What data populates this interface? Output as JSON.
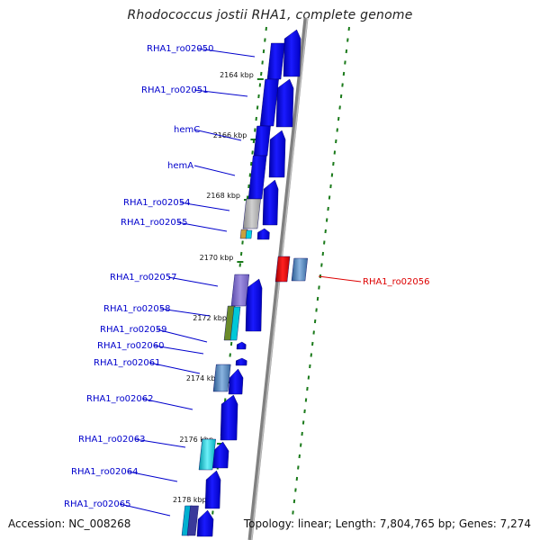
{
  "title": "Rhodococcus jostii RHA1, complete genome",
  "accession": "Accession: NC_008268",
  "topology": "Topology: linear; Length: 7,804,765 bp; Genes: 7,274",
  "gene_labels": [
    {
      "text": "RHA1_ro02050",
      "color": "#0000cc"
    },
    {
      "text": "RHA1_ro02051",
      "color": "#0000cc"
    },
    {
      "text": "hemC",
      "color": "#0000cc"
    },
    {
      "text": "hemA",
      "color": "#0000cc"
    },
    {
      "text": "RHA1_ro02054",
      "color": "#0000cc"
    },
    {
      "text": "RHA1_ro02055",
      "color": "#0000cc"
    },
    {
      "text": "RHA1_ro02057",
      "color": "#0000cc"
    },
    {
      "text": "RHA1_ro02058",
      "color": "#0000cc"
    },
    {
      "text": "RHA1_ro02059",
      "color": "#0000cc"
    },
    {
      "text": "RHA1_ro02060",
      "color": "#0000cc"
    },
    {
      "text": "RHA1_ro02061",
      "color": "#0000cc"
    },
    {
      "text": "RHA1_ro02062",
      "color": "#0000cc"
    },
    {
      "text": "RHA1_ro02063",
      "color": "#0000cc"
    },
    {
      "text": "RHA1_ro02064",
      "color": "#0000cc"
    },
    {
      "text": "RHA1_ro02065",
      "color": "#0000cc"
    },
    {
      "text": "RHA1_ro02056",
      "color": "#dd0000"
    }
  ],
  "kbp_ticks": [
    "2164 kbp",
    "2166 kbp",
    "2168 kbp",
    "2170 kbp",
    "2172 kbp",
    "2174 kbp",
    "2176 kbp",
    "2178 kbp"
  ],
  "colors": {
    "gene_blue": "#0000ee",
    "gene_highlight": "#ee0000",
    "axis_gray": "#909090",
    "dash_green": "#1a7a1a"
  }
}
